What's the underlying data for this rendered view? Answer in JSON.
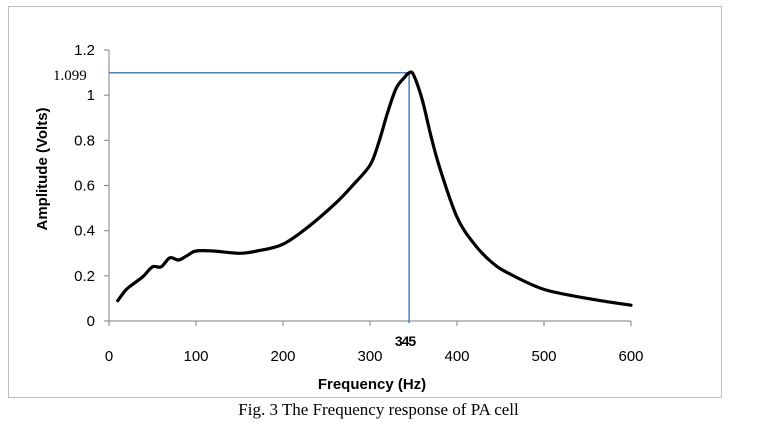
{
  "chart_data": {
    "type": "line",
    "title": "",
    "xlabel": "Frequency (Hz)",
    "ylabel": "Amplitude (Volts)",
    "xlim": [
      0,
      600
    ],
    "ylim": [
      0,
      1.2
    ],
    "x_ticks": [
      0,
      100,
      200,
      300,
      400,
      500,
      600
    ],
    "y_ticks": [
      0,
      0.2,
      0.4,
      0.6,
      0.8,
      1,
      1.2
    ],
    "x_tick_labels": [
      "0",
      "100",
      "200",
      "300",
      "400",
      "500",
      "600"
    ],
    "y_tick_labels": [
      "0",
      "0.2",
      "0.4",
      "0.6",
      "0.8",
      "1",
      "1.2"
    ],
    "series": [
      {
        "name": "Amplitude",
        "color": "#000000",
        "x": [
          10,
          20,
          30,
          40,
          50,
          60,
          70,
          80,
          90,
          100,
          120,
          150,
          170,
          200,
          230,
          260,
          280,
          300,
          310,
          320,
          330,
          340,
          345,
          350,
          360,
          370,
          380,
          400,
          420,
          440,
          460,
          500,
          550,
          600
        ],
        "y": [
          0.09,
          0.14,
          0.17,
          0.2,
          0.24,
          0.24,
          0.28,
          0.27,
          0.29,
          0.31,
          0.31,
          0.3,
          0.31,
          0.34,
          0.42,
          0.52,
          0.6,
          0.69,
          0.79,
          0.92,
          1.03,
          1.08,
          1.099,
          1.09,
          0.98,
          0.82,
          0.68,
          0.46,
          0.34,
          0.26,
          0.21,
          0.14,
          0.1,
          0.07
        ]
      }
    ],
    "annotation": {
      "peak_x": 345,
      "peak_y": 1.099,
      "peak_x_label": "345",
      "peak_y_label": "1.099",
      "color": "#4f81bd"
    }
  },
  "caption": "Fig. 3 The Frequency response of PA cell"
}
